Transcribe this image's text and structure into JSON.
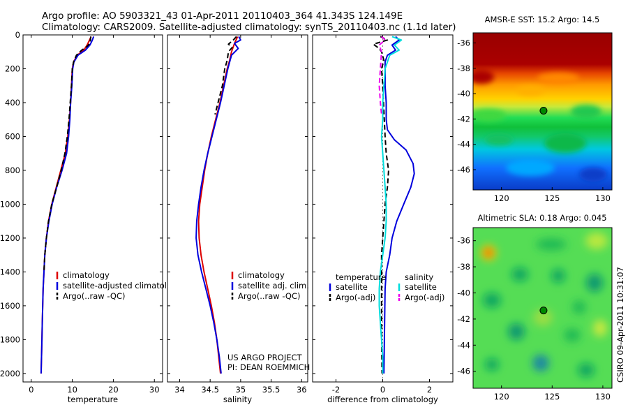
{
  "header": {
    "title_line1": "Argo profile: AO 5903321_43 01-Apr-2011 20110403_364 41.343S 124.149E",
    "title_line2": "Climatology: CARS2009. Satellite-adjusted climatology: synTS_20110403.nc (1.1d later)"
  },
  "footer": {
    "project_line1": "US ARGO PROJECT",
    "project_line2": "PI: DEAN ROEMMICH",
    "timestamp": "CSIRO 09-Apr-2011 10:31:07"
  },
  "colors": {
    "climatology": "#dd0000",
    "satellite": "#0000dd",
    "argo": "#000000",
    "satellite_salinity": "#00dddd",
    "argo_salinity": "#ee00ee",
    "marker": "#007700"
  },
  "chart_data": [
    {
      "type": "line",
      "xlabel": "temperature",
      "ylabel": "",
      "xlim": [
        -2,
        32
      ],
      "ylim": [
        2050,
        0
      ],
      "y_reversed": true,
      "xticks": [
        "0",
        "10",
        "20",
        "30"
      ],
      "yticks": [
        "0",
        "200",
        "400",
        "600",
        "800",
        "1000",
        "1200",
        "1400",
        "1600",
        "1800",
        "2000"
      ],
      "legend": {
        "position": "lower-right",
        "entries": [
          "climatology",
          "satellite-adjusted climatology",
          "Argo(..raw -QC)"
        ]
      },
      "series": [
        {
          "name": "climatology",
          "color": "#dd0000",
          "dash": "solid",
          "points": [
            [
              14.6,
              10
            ],
            [
              14.2,
              30
            ],
            [
              13.6,
              60
            ],
            [
              12.8,
              90
            ],
            [
              11.2,
              120
            ],
            [
              10.3,
              160
            ],
            [
              10.0,
              200
            ],
            [
              9.8,
              300
            ],
            [
              9.6,
              400
            ],
            [
              9.3,
              500
            ],
            [
              8.9,
              600
            ],
            [
              8.3,
              700
            ],
            [
              7.2,
              800
            ],
            [
              6.1,
              900
            ],
            [
              5.0,
              1000
            ],
            [
              4.2,
              1100
            ],
            [
              3.7,
              1200
            ],
            [
              3.3,
              1300
            ],
            [
              3.1,
              1400
            ],
            [
              2.9,
              1500
            ],
            [
              2.8,
              1600
            ],
            [
              2.7,
              1700
            ],
            [
              2.6,
              1800
            ],
            [
              2.5,
              1900
            ],
            [
              2.4,
              2000
            ]
          ]
        },
        {
          "name": "satellite-adjusted climatology",
          "color": "#0000dd",
          "dash": "solid",
          "points": [
            [
              15.2,
              10
            ],
            [
              14.9,
              30
            ],
            [
              14.3,
              60
            ],
            [
              13.2,
              90
            ],
            [
              11.4,
              120
            ],
            [
              10.4,
              160
            ],
            [
              10.1,
              200
            ],
            [
              9.9,
              300
            ],
            [
              9.6,
              400
            ],
            [
              9.4,
              500
            ],
            [
              9.1,
              600
            ],
            [
              8.6,
              700
            ],
            [
              7.5,
              800
            ],
            [
              6.2,
              900
            ],
            [
              5.1,
              1000
            ],
            [
              4.3,
              1100
            ],
            [
              3.7,
              1200
            ],
            [
              3.3,
              1300
            ],
            [
              3.1,
              1400
            ],
            [
              2.9,
              1500
            ],
            [
              2.8,
              1600
            ],
            [
              2.7,
              1700
            ],
            [
              2.6,
              1800
            ],
            [
              2.5,
              1900
            ],
            [
              2.4,
              2000
            ]
          ]
        },
        {
          "name": "Argo(..raw -QC)",
          "color": "#000000",
          "dash": "dashed",
          "points": [
            [
              14.5,
              10
            ],
            [
              14.4,
              30
            ],
            [
              14.3,
              50
            ],
            [
              13.5,
              70
            ],
            [
              12.3,
              90
            ],
            [
              11.0,
              120
            ],
            [
              10.3,
              160
            ],
            [
              10.0,
              200
            ],
            [
              9.8,
              300
            ],
            [
              9.5,
              400
            ],
            [
              9.2,
              500
            ],
            [
              8.8,
              600
            ],
            [
              8.2,
              700
            ],
            [
              7.3,
              800
            ],
            [
              6.2,
              900
            ],
            [
              5.0,
              1000
            ],
            [
              4.2,
              1100
            ],
            [
              3.7,
              1200
            ],
            [
              3.3,
              1300
            ],
            [
              3.1,
              1400
            ]
          ]
        }
      ]
    },
    {
      "type": "line",
      "xlabel": "salinity",
      "ylabel": "",
      "xlim": [
        33.8,
        36.1
      ],
      "ylim": [
        2050,
        0
      ],
      "y_reversed": true,
      "xticks": [
        "34",
        "34.5",
        "35",
        "35.5",
        "36"
      ],
      "yticks": [],
      "legend": {
        "position": "lower-right",
        "entries": [
          "climatology",
          "satellite adj. clim.",
          "Argo(..raw -QC)"
        ]
      },
      "series": [
        {
          "name": "climatology",
          "color": "#dd0000",
          "dash": "solid",
          "points": [
            [
              34.95,
              10
            ],
            [
              34.9,
              50
            ],
            [
              34.85,
              100
            ],
            [
              34.82,
              150
            ],
            [
              34.78,
              200
            ],
            [
              34.72,
              300
            ],
            [
              34.66,
              400
            ],
            [
              34.59,
              500
            ],
            [
              34.52,
              600
            ],
            [
              34.46,
              700
            ],
            [
              34.41,
              800
            ],
            [
              34.37,
              900
            ],
            [
              34.33,
              1000
            ],
            [
              34.31,
              1100
            ],
            [
              34.32,
              1200
            ],
            [
              34.35,
              1300
            ],
            [
              34.4,
              1400
            ],
            [
              34.46,
              1500
            ],
            [
              34.52,
              1600
            ],
            [
              34.57,
              1700
            ],
            [
              34.61,
              1800
            ],
            [
              34.64,
              1900
            ],
            [
              34.67,
              2000
            ]
          ]
        },
        {
          "name": "satellite adj. clim.",
          "color": "#0000dd",
          "dash": "solid",
          "points": [
            [
              34.97,
              10
            ],
            [
              35.0,
              30
            ],
            [
              34.9,
              50
            ],
            [
              34.96,
              80
            ],
            [
              34.85,
              120
            ],
            [
              34.82,
              160
            ],
            [
              34.79,
              200
            ],
            [
              34.73,
              300
            ],
            [
              34.67,
              400
            ],
            [
              34.6,
              500
            ],
            [
              34.53,
              600
            ],
            [
              34.46,
              700
            ],
            [
              34.4,
              800
            ],
            [
              34.35,
              900
            ],
            [
              34.31,
              1000
            ],
            [
              34.28,
              1100
            ],
            [
              34.27,
              1200
            ],
            [
              34.3,
              1300
            ],
            [
              34.36,
              1400
            ],
            [
              34.43,
              1500
            ],
            [
              34.5,
              1600
            ],
            [
              34.56,
              1700
            ],
            [
              34.61,
              1800
            ],
            [
              34.65,
              1900
            ],
            [
              34.68,
              2000
            ]
          ]
        },
        {
          "name": "Argo(..raw -QC)",
          "color": "#000000",
          "dash": "dashed",
          "points": [
            [
              34.93,
              10
            ],
            [
              34.88,
              30
            ],
            [
              34.8,
              55
            ],
            [
              34.86,
              75
            ],
            [
              34.8,
              100
            ],
            [
              34.78,
              150
            ],
            [
              34.74,
              200
            ],
            [
              34.7,
              300
            ],
            [
              34.63,
              400
            ],
            [
              34.58,
              470
            ]
          ]
        }
      ]
    },
    {
      "type": "line",
      "xlabel": "difference from climatology",
      "ylabel": "",
      "xlim": [
        -3,
        3
      ],
      "ylim": [
        2050,
        0
      ],
      "y_reversed": true,
      "xticks": [
        "-2",
        "0",
        "2"
      ],
      "yticks": [],
      "legend": {
        "position": "lower-right",
        "columns": [
          {
            "header": "temperature",
            "entries": [
              "satellite",
              "Argo(-adj)"
            ]
          },
          {
            "header": "salinity",
            "entries": [
              "satellite",
              "Argo(-adj)"
            ]
          }
        ]
      },
      "series": [
        {
          "name": "temperature satellite",
          "color": "#0000dd",
          "dash": "solid",
          "points": [
            [
              0.55,
              10
            ],
            [
              0.7,
              30
            ],
            [
              0.4,
              60
            ],
            [
              0.55,
              90
            ],
            [
              0.2,
              120
            ],
            [
              0.1,
              160
            ],
            [
              0.1,
              200
            ],
            [
              0.1,
              300
            ],
            [
              0.15,
              400
            ],
            [
              0.15,
              500
            ],
            [
              0.2,
              560
            ],
            [
              0.5,
              620
            ],
            [
              1.0,
              680
            ],
            [
              1.3,
              760
            ],
            [
              1.35,
              820
            ],
            [
              1.2,
              900
            ],
            [
              0.9,
              1000
            ],
            [
              0.6,
              1100
            ],
            [
              0.4,
              1200
            ],
            [
              0.3,
              1300
            ],
            [
              0.15,
              1400
            ],
            [
              0.1,
              1500
            ],
            [
              0.08,
              1700
            ],
            [
              0.05,
              2000
            ]
          ]
        },
        {
          "name": "temperature Argo(-adj)",
          "color": "#000000",
          "dash": "dashed",
          "points": [
            [
              -0.1,
              10
            ],
            [
              0.2,
              30
            ],
            [
              -0.4,
              55
            ],
            [
              -0.15,
              80
            ],
            [
              -0.05,
              100
            ],
            [
              0.05,
              150
            ],
            [
              -0.05,
              200
            ],
            [
              0.0,
              300
            ],
            [
              0.05,
              450
            ],
            [
              0.1,
              600
            ],
            [
              0.15,
              700
            ],
            [
              0.25,
              800
            ],
            [
              0.2,
              900
            ],
            [
              0.1,
              1000
            ],
            [
              0.05,
              1100
            ],
            [
              0.0,
              1200
            ],
            [
              -0.05,
              1300
            ],
            [
              -0.05,
              1500
            ],
            [
              -0.05,
              1700
            ],
            [
              -0.03,
              2000
            ]
          ]
        },
        {
          "name": "salinity satellite",
          "color": "#00dddd",
          "dash": "solid",
          "points": [
            [
              0.4,
              10
            ],
            [
              0.8,
              30
            ],
            [
              0.5,
              60
            ],
            [
              0.7,
              90
            ],
            [
              0.3,
              120
            ],
            [
              0.2,
              160
            ],
            [
              0.1,
              200
            ],
            [
              0.05,
              300
            ],
            [
              0.0,
              400
            ],
            [
              0.0,
              500
            ],
            [
              -0.05,
              600
            ],
            [
              0.0,
              700
            ],
            [
              0.05,
              800
            ],
            [
              0.1,
              900
            ],
            [
              0.15,
              1000
            ],
            [
              0.15,
              1100
            ],
            [
              0.1,
              1200
            ],
            [
              0.0,
              1300
            ],
            [
              -0.1,
              1400
            ],
            [
              -0.15,
              1500
            ],
            [
              -0.15,
              1600
            ],
            [
              -0.1,
              1700
            ],
            [
              -0.05,
              1800
            ],
            [
              0.0,
              1900
            ],
            [
              0.0,
              2000
            ]
          ]
        },
        {
          "name": "salinity Argo(-adj)",
          "color": "#ee00ee",
          "dash": "dashed",
          "points": [
            [
              -0.05,
              10
            ],
            [
              0.1,
              30
            ],
            [
              -0.15,
              60
            ],
            [
              -0.05,
              100
            ],
            [
              -0.1,
              200
            ],
            [
              -0.15,
              300
            ],
            [
              -0.1,
              400
            ],
            [
              -0.05,
              470
            ]
          ]
        }
      ]
    },
    {
      "type": "heatmap",
      "title": "AMSR-E SST: 15.2 Argo: 14.5",
      "xlim": [
        117.2,
        130.9
      ],
      "ylim": [
        -47.6,
        -35.2
      ],
      "xticks": [
        "120",
        "125",
        "130"
      ],
      "yticks": [
        "-36",
        "-38",
        "-40",
        "-42",
        "-44",
        "-46"
      ],
      "argo_marker": [
        124.149,
        -41.343
      ]
    },
    {
      "type": "heatmap",
      "title": "Altimetric SLA: 0.18 Argo: 0.045",
      "xlim": [
        117.2,
        130.9
      ],
      "ylim": [
        -47.3,
        -35.0
      ],
      "xticks": [
        "120",
        "125",
        "130"
      ],
      "yticks": [
        "-36",
        "-38",
        "-40",
        "-42",
        "-44",
        "-46"
      ],
      "argo_marker": [
        124.149,
        -41.343
      ]
    }
  ]
}
